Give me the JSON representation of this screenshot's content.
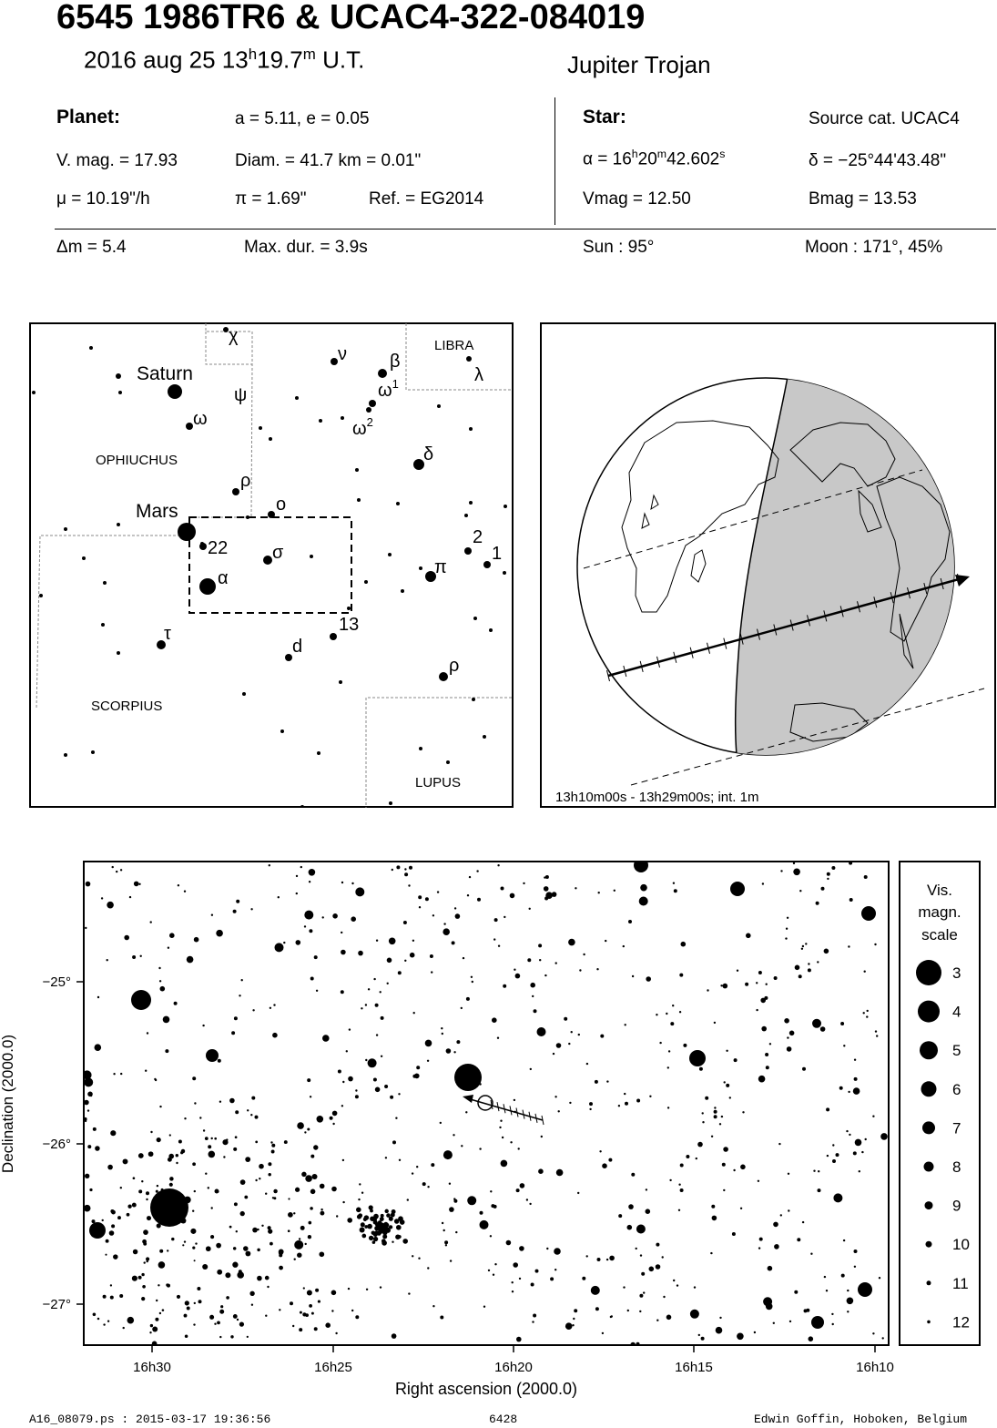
{
  "header": {
    "title": "6545 1986TR6  &  UCAC4-322-084019",
    "date": "2016 aug 25  13",
    "time_h": "h",
    "time_min": "19.7",
    "time_m": "m",
    "time_ut": "U.T.",
    "class": "Jupiter Trojan"
  },
  "planet": {
    "heading": "Planet:",
    "orbit": "a = 5.11, e = 0.05",
    "vmag": "V. mag. = 17.93",
    "diam": "Diam. = 41.7 km = 0.01\"",
    "mu": "μ =  10.19\"/h",
    "pi": "π =  1.69\"",
    "ref": "Ref. = EG2014"
  },
  "star": {
    "heading": "Star:",
    "source": "Source cat.  UCAC4",
    "ra_prefix": "α = 16",
    "ra_h": "h",
    "ra_min": "20",
    "ra_m": "m",
    "ra_sec": "42.602",
    "ra_s": "s",
    "dec": "δ = −25°44'43.48\"",
    "vmag": "Vmag = 12.50",
    "bmag": "Bmag = 13.53"
  },
  "event": {
    "dm": "Δm = 5.4",
    "maxdur": "Max. dur. = 3.9s",
    "sun": "Sun :  95°",
    "moon": "Moon : 171°, 45%"
  },
  "finder": {
    "constellations": [
      "LIBRA",
      "OPHIUCHUS",
      "SCORPIUS",
      "LUPUS"
    ],
    "planets": [
      "Saturn",
      "Mars"
    ],
    "labels": [
      "χ",
      "ν",
      "β",
      "ω",
      "λ",
      "ψ",
      "ω",
      "ω",
      "δ",
      "ρ",
      "ο",
      "22",
      "σ",
      "π",
      "2",
      "1",
      "α",
      "13",
      "τ",
      "d",
      "ρ"
    ],
    "label_sups": [
      "1",
      "2"
    ]
  },
  "globe": {
    "caption": "13h10m00s - 13h29m00s; int.  1m"
  },
  "chart_data": {
    "type": "scatter",
    "xlabel": "Right ascension (2000.0)",
    "ylabel": "Declination (2000.0)",
    "xticks": [
      "16h30",
      "16h25",
      "16h20",
      "16h15",
      "16h10"
    ],
    "yticks": [
      "−25°",
      "−26°",
      "−27°"
    ],
    "target": {
      "ra": "16h20m42.602s",
      "dec": "−25°44'43.48\""
    }
  },
  "legend": {
    "title1": "Vis.",
    "title2": "magn.",
    "title3": "scale",
    "mags": [
      "3",
      "4",
      "5",
      "6",
      "7",
      "8",
      "9",
      "10",
      "11",
      "12"
    ]
  },
  "footer": {
    "file": "A16_08079.ps : 2015-03-17 19:36:56",
    "number": "6428",
    "author": "Edwin Goffin, Hoboken, Belgium"
  }
}
